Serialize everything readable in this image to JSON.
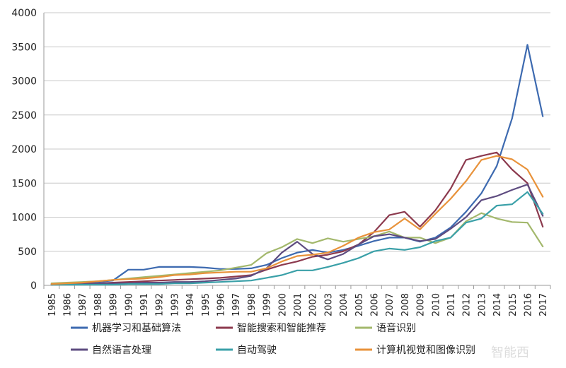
{
  "chart_data": {
    "type": "line",
    "title": "",
    "xlabel": "",
    "ylabel": "",
    "ylim": [
      0,
      4000
    ],
    "yticks": [
      0,
      500,
      1000,
      1500,
      2000,
      2500,
      3000,
      3500,
      4000
    ],
    "grid": "horizontal",
    "legend_position": "bottom",
    "x": [
      "1985",
      "1986",
      "1987",
      "1988",
      "1989",
      "1990",
      "1991",
      "1992",
      "1993",
      "1994",
      "1995",
      "1996",
      "1997",
      "1998",
      "1999",
      "2000",
      "2001",
      "2002",
      "2003",
      "2004",
      "2005",
      "2006",
      "2007",
      "2008",
      "2009",
      "2010",
      "2011",
      "2012",
      "2013",
      "2014",
      "2015",
      "2016",
      "2017"
    ],
    "series": [
      {
        "name": "机器学习和基础算法",
        "color": "#3d6ab0",
        "values": [
          20,
          30,
          40,
          50,
          70,
          230,
          230,
          270,
          270,
          270,
          260,
          240,
          240,
          250,
          300,
          400,
          480,
          520,
          480,
          520,
          580,
          650,
          700,
          700,
          640,
          700,
          850,
          1080,
          1350,
          1750,
          2450,
          3530,
          2480
        ]
      },
      {
        "name": "智能搜索和智能推荐",
        "color": "#8c3a4e",
        "values": [
          10,
          20,
          30,
          30,
          40,
          50,
          60,
          70,
          80,
          90,
          100,
          110,
          130,
          150,
          230,
          300,
          350,
          420,
          450,
          500,
          600,
          780,
          1030,
          1080,
          860,
          1100,
          1420,
          1840,
          1900,
          1950,
          1700,
          1500,
          860
        ]
      },
      {
        "name": "语音识别",
        "color": "#a3b86c",
        "values": [
          30,
          40,
          50,
          60,
          80,
          100,
          120,
          140,
          160,
          180,
          200,
          220,
          260,
          300,
          470,
          560,
          680,
          620,
          690,
          640,
          680,
          720,
          790,
          700,
          700,
          620,
          700,
          940,
          1060,
          980,
          930,
          920,
          570
        ]
      },
      {
        "name": "自然语言处理",
        "color": "#5e4c80",
        "values": [
          10,
          20,
          20,
          30,
          30,
          30,
          40,
          40,
          50,
          50,
          60,
          80,
          100,
          140,
          250,
          480,
          640,
          460,
          380,
          460,
          600,
          720,
          750,
          700,
          650,
          680,
          830,
          1000,
          1250,
          1310,
          1400,
          1480,
          1020
        ]
      },
      {
        "name": "自动驾驶",
        "color": "#3aa0a8",
        "values": [
          10,
          10,
          10,
          10,
          10,
          20,
          20,
          20,
          30,
          30,
          40,
          50,
          60,
          70,
          110,
          150,
          220,
          220,
          270,
          330,
          400,
          500,
          540,
          520,
          560,
          650,
          700,
          920,
          980,
          1170,
          1190,
          1370,
          1050
        ]
      },
      {
        "name": "计算机视觉和图像识别",
        "color": "#e8923a",
        "values": [
          20,
          30,
          40,
          60,
          80,
          90,
          100,
          120,
          150,
          160,
          180,
          190,
          200,
          200,
          250,
          350,
          430,
          450,
          480,
          580,
          700,
          780,
          820,
          980,
          820,
          1050,
          1270,
          1530,
          1840,
          1900,
          1850,
          1700,
          1300
        ]
      }
    ]
  },
  "watermark": "智能西"
}
